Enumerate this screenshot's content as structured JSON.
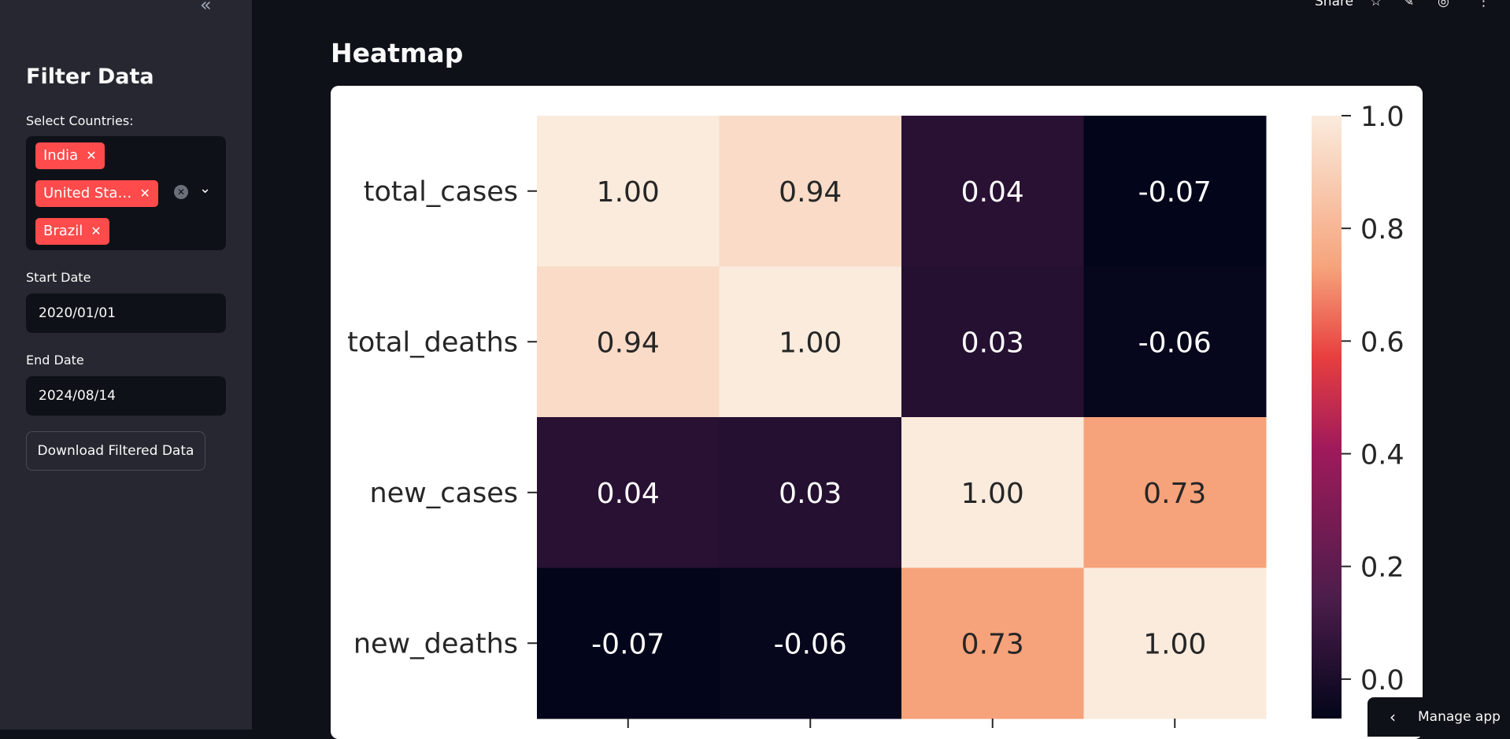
{
  "topbar": {
    "share_label": "Share"
  },
  "sidebar": {
    "title": "Filter Data",
    "countries_label": "Select Countries:",
    "countries": [
      "India",
      "United Sta…",
      "Brazil"
    ],
    "start_label": "Start Date",
    "start_value": "2020/01/01",
    "end_label": "End Date",
    "end_value": "2024/08/14",
    "download_label": "Download Filtered Data"
  },
  "main": {
    "heading": "Heatmap"
  },
  "manage_label": "Manage app",
  "chart_data": {
    "type": "heatmap",
    "rows": [
      "total_cases",
      "total_deaths",
      "new_cases",
      "new_deaths"
    ],
    "values": [
      [
        1.0,
        0.94,
        0.04,
        -0.07
      ],
      [
        0.94,
        1.0,
        0.03,
        -0.06
      ],
      [
        0.04,
        0.03,
        1.0,
        0.73
      ],
      [
        -0.07,
        -0.06,
        0.73,
        1.0
      ]
    ],
    "labels": [
      [
        "1.00",
        "0.94",
        "0.04",
        "-0.07"
      ],
      [
        "0.94",
        "1.00",
        "0.03",
        "-0.06"
      ],
      [
        "0.04",
        "0.03",
        "1.00",
        "0.73"
      ],
      [
        "-0.07",
        "-0.06",
        "0.73",
        "1.00"
      ]
    ],
    "colorbar_ticks": [
      "1.0",
      "0.8",
      "0.6",
      "0.4",
      "0.2",
      "0.0"
    ],
    "colorbar_range": [
      -0.07,
      1.0
    ],
    "colormap": "rocket"
  }
}
